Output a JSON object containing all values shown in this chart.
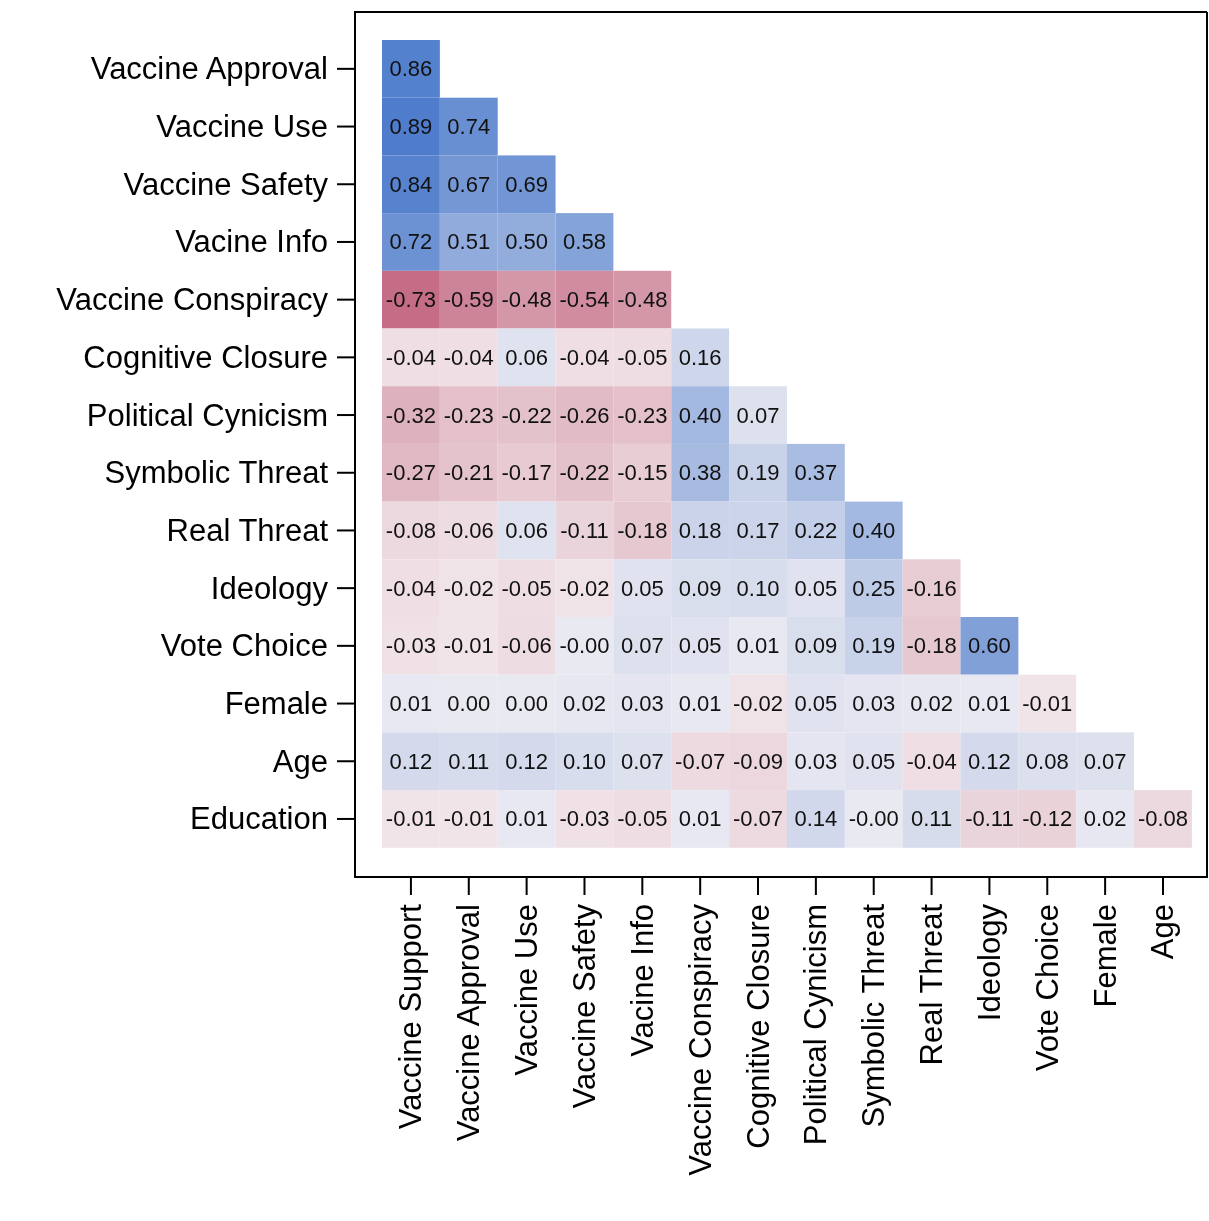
{
  "chart_data": {
    "type": "heatmap",
    "categories": [
      "Vaccine Support",
      "Vaccine Approval",
      "Vaccine Use",
      "Vaccine Safety",
      "Vacine Info",
      "Vaccine Conspiracy",
      "Cognitive Closure",
      "Political Cynicism",
      "Symbolic Threat",
      "Real Threat",
      "Ideology",
      "Vote Choice",
      "Female",
      "Age"
    ],
    "y_categories": [
      "Vaccine Approval",
      "Vaccine Use",
      "Vaccine Safety",
      "Vacine Info",
      "Vaccine Conspiracy",
      "Cognitive Closure",
      "Political Cynicism",
      "Symbolic Threat",
      "Real Threat",
      "Ideology",
      "Vote Choice",
      "Female",
      "Age",
      "Education"
    ],
    "cells": [
      [
        0.86,
        null,
        null,
        null,
        null,
        null,
        null,
        null,
        null,
        null,
        null,
        null,
        null,
        null
      ],
      [
        0.89,
        0.74,
        null,
        null,
        null,
        null,
        null,
        null,
        null,
        null,
        null,
        null,
        null,
        null
      ],
      [
        0.84,
        0.67,
        0.69,
        null,
        null,
        null,
        null,
        null,
        null,
        null,
        null,
        null,
        null,
        null
      ],
      [
        0.72,
        0.51,
        0.5,
        0.58,
        null,
        null,
        null,
        null,
        null,
        null,
        null,
        null,
        null,
        null
      ],
      [
        -0.73,
        -0.59,
        -0.48,
        -0.54,
        -0.48,
        null,
        null,
        null,
        null,
        null,
        null,
        null,
        null,
        null
      ],
      [
        -0.04,
        -0.04,
        0.06,
        -0.04,
        -0.05,
        0.16,
        null,
        null,
        null,
        null,
        null,
        null,
        null,
        null
      ],
      [
        -0.32,
        -0.23,
        -0.22,
        -0.26,
        -0.23,
        0.4,
        0.07,
        null,
        null,
        null,
        null,
        null,
        null,
        null
      ],
      [
        -0.27,
        -0.21,
        -0.17,
        -0.22,
        -0.15,
        0.38,
        0.19,
        0.37,
        null,
        null,
        null,
        null,
        null,
        null
      ],
      [
        -0.08,
        -0.06,
        0.06,
        -0.11,
        -0.18,
        0.18,
        0.17,
        0.22,
        0.4,
        null,
        null,
        null,
        null,
        null
      ],
      [
        -0.04,
        -0.02,
        -0.05,
        -0.02,
        0.05,
        0.09,
        0.1,
        0.05,
        0.25,
        -0.16,
        null,
        null,
        null,
        null
      ],
      [
        -0.03,
        -0.01,
        -0.06,
        0.0,
        0.07,
        0.05,
        0.01,
        0.09,
        0.19,
        -0.18,
        0.6,
        null,
        null,
        null
      ],
      [
        0.01,
        0.0,
        0.0,
        0.02,
        0.03,
        0.01,
        -0.02,
        0.05,
        0.03,
        0.02,
        0.01,
        -0.01,
        null,
        null
      ],
      [
        0.12,
        0.11,
        0.12,
        0.1,
        0.07,
        -0.07,
        -0.09,
        0.03,
        0.05,
        -0.04,
        0.12,
        0.08,
        0.07,
        null
      ],
      [
        -0.01,
        -0.01,
        0.01,
        -0.03,
        -0.05,
        0.01,
        -0.07,
        0.14,
        0.0,
        0.11,
        -0.11,
        -0.12,
        0.02,
        -0.08
      ]
    ],
    "cell_labels": [
      [
        "0.86",
        null,
        null,
        null,
        null,
        null,
        null,
        null,
        null,
        null,
        null,
        null,
        null,
        null
      ],
      [
        "0.89",
        "0.74",
        null,
        null,
        null,
        null,
        null,
        null,
        null,
        null,
        null,
        null,
        null,
        null
      ],
      [
        "0.84",
        "0.67",
        "0.69",
        null,
        null,
        null,
        null,
        null,
        null,
        null,
        null,
        null,
        null,
        null
      ],
      [
        "0.72",
        "0.51",
        "0.50",
        "0.58",
        null,
        null,
        null,
        null,
        null,
        null,
        null,
        null,
        null,
        null
      ],
      [
        "-0.73",
        "-0.59",
        "-0.48",
        "-0.54",
        "-0.48",
        null,
        null,
        null,
        null,
        null,
        null,
        null,
        null,
        null
      ],
      [
        "-0.04",
        "-0.04",
        "0.06",
        "-0.04",
        "-0.05",
        "0.16",
        null,
        null,
        null,
        null,
        null,
        null,
        null,
        null
      ],
      [
        "-0.32",
        "-0.23",
        "-0.22",
        "-0.26",
        "-0.23",
        "0.40",
        "0.07",
        null,
        null,
        null,
        null,
        null,
        null,
        null
      ],
      [
        "-0.27",
        "-0.21",
        "-0.17",
        "-0.22",
        "-0.15",
        "0.38",
        "0.19",
        "0.37",
        null,
        null,
        null,
        null,
        null,
        null
      ],
      [
        "-0.08",
        "-0.06",
        "0.06",
        "-0.11",
        "-0.18",
        "0.18",
        "0.17",
        "0.22",
        "0.40",
        null,
        null,
        null,
        null,
        null
      ],
      [
        "-0.04",
        "-0.02",
        "-0.05",
        "-0.02",
        "0.05",
        "0.09",
        "0.10",
        "0.05",
        "0.25",
        "-0.16",
        null,
        null,
        null,
        null
      ],
      [
        "-0.03",
        "-0.01",
        "-0.06",
        "-0.00",
        "0.07",
        "0.05",
        "0.01",
        "0.09",
        "0.19",
        "-0.18",
        "0.60",
        null,
        null,
        null
      ],
      [
        "0.01",
        "0.00",
        "0.00",
        "0.02",
        "0.03",
        "0.01",
        "-0.02",
        "0.05",
        "0.03",
        "0.02",
        "0.01",
        "-0.01",
        null,
        null
      ],
      [
        "0.12",
        "0.11",
        "0.12",
        "0.10",
        "0.07",
        "-0.07",
        "-0.09",
        "0.03",
        "0.05",
        "-0.04",
        "0.12",
        "0.08",
        "0.07",
        null
      ],
      [
        "-0.01",
        "-0.01",
        "0.01",
        "-0.03",
        "-0.05",
        "0.01",
        "-0.07",
        "0.14",
        "-0.00",
        "0.11",
        "-0.11",
        "-0.12",
        "0.02",
        "-0.08"
      ]
    ]
  }
}
